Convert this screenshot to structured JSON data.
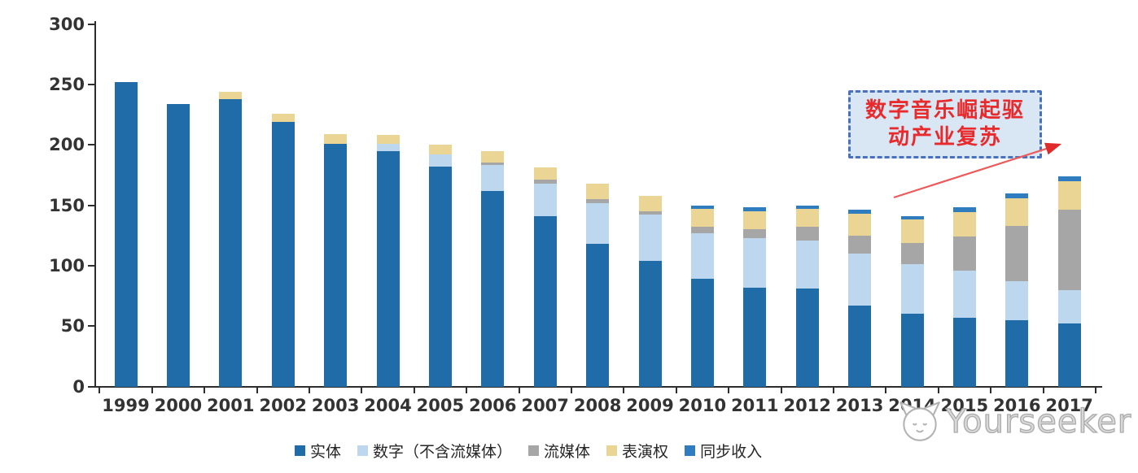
{
  "chart_data": {
    "type": "bar",
    "stacked": true,
    "title": "",
    "xlabel": "",
    "ylabel": "",
    "categories": [
      "1999",
      "2000",
      "2001",
      "2002",
      "2003",
      "2004",
      "2005",
      "2006",
      "2007",
      "2008",
      "2009",
      "2010",
      "2011",
      "2012",
      "2013",
      "2014",
      "2015",
      "2016",
      "2017"
    ],
    "series": [
      {
        "key": "physical",
        "name": "实体",
        "color": "#1f6ca8",
        "values": [
          252,
          234,
          238,
          219,
          201,
          195,
          182,
          162,
          141,
          118,
          104,
          89,
          82,
          81,
          67,
          60,
          57,
          55,
          52
        ]
      },
      {
        "key": "digital",
        "name": "数字（不含流媒体）",
        "color": "#bdd7ee",
        "values": [
          0,
          0,
          0,
          0,
          0,
          6,
          10,
          21,
          27,
          34,
          38,
          38,
          41,
          40,
          43,
          41,
          39,
          32,
          28
        ]
      },
      {
        "key": "streaming",
        "name": "流媒体",
        "color": "#a6a6a6",
        "values": [
          0,
          0,
          0,
          0,
          0,
          0,
          0,
          2,
          3,
          3,
          3,
          5,
          7,
          11,
          15,
          18,
          28,
          46,
          66
        ]
      },
      {
        "key": "performance",
        "name": "表演权",
        "color": "#ead595",
        "values": [
          0,
          0,
          6,
          7,
          8,
          7,
          8,
          10,
          10,
          13,
          13,
          15,
          15,
          15,
          18,
          19,
          20,
          23,
          24
        ]
      },
      {
        "key": "sync",
        "name": "同步收入",
        "color": "#2f7cbe",
        "values": [
          0,
          0,
          0,
          0,
          0,
          0,
          0,
          0,
          0,
          0,
          0,
          3,
          3,
          3,
          3,
          3,
          4,
          4,
          4
        ]
      }
    ],
    "totals": [
      252,
      234,
      244,
      226,
      209,
      208,
      200,
      195,
      181,
      168,
      158,
      150,
      148,
      150,
      146,
      141,
      148,
      160,
      174
    ],
    "ylim": [
      0,
      300
    ],
    "yticks": [
      0,
      50,
      100,
      150,
      200,
      250,
      300
    ],
    "grid": false,
    "legend_position": "bottom"
  },
  "annotation": {
    "line1": "数字音乐崛起驱",
    "line2": "动产业复苏",
    "text_color": "#e82a2c",
    "box_fill": "#d9e6f4",
    "box_border": "#4a71be",
    "arrow_color": "#e8484a"
  },
  "watermark": {
    "brand": "Yourseeker",
    "logo": "cat-mascot-logo",
    "color": "#ababab"
  }
}
